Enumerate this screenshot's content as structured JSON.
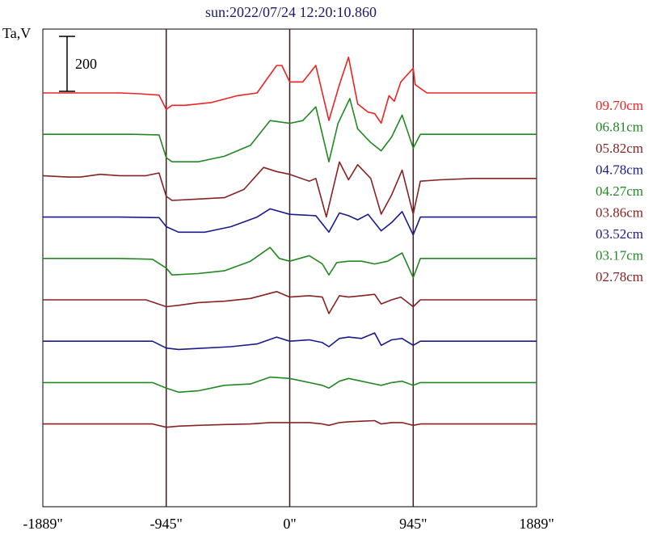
{
  "chart_data": {
    "type": "line",
    "title": "sun:2022/07/24 12:20:10.860",
    "ylabel": "Ta,V",
    "scale_bar_label": "200",
    "scale_bar_value": 200,
    "xlim": [
      -1889,
      1889
    ],
    "x_ticks": [
      {
        "value": -1889,
        "label": "-1889\""
      },
      {
        "value": -945,
        "label": "-945\""
      },
      {
        "value": 0,
        "label": "0\""
      },
      {
        "value": 945,
        "label": "945\""
      },
      {
        "value": 1889,
        "label": "1889\""
      }
    ],
    "vertical_markers": [
      -945,
      0,
      945
    ],
    "legend_position": "right",
    "series": [
      {
        "name": "09.70cm",
        "color": "#ee2222",
        "baseline": 0,
        "points": [
          [
            -1889,
            0
          ],
          [
            -1300,
            0
          ],
          [
            -1150,
            -3
          ],
          [
            -1000,
            -8
          ],
          [
            -945,
            -60
          ],
          [
            -900,
            -45
          ],
          [
            -800,
            -45
          ],
          [
            -600,
            -35
          ],
          [
            -400,
            -10
          ],
          [
            -250,
            0
          ],
          [
            -100,
            100
          ],
          [
            -60,
            100
          ],
          [
            0,
            40
          ],
          [
            100,
            40
          ],
          [
            200,
            100
          ],
          [
            300,
            -100
          ],
          [
            380,
            30
          ],
          [
            450,
            130
          ],
          [
            520,
            -40
          ],
          [
            600,
            -70
          ],
          [
            650,
            -75
          ],
          [
            700,
            -110
          ],
          [
            760,
            -10
          ],
          [
            800,
            -30
          ],
          [
            850,
            40
          ],
          [
            945,
            90
          ],
          [
            960,
            30
          ],
          [
            1050,
            0
          ],
          [
            1889,
            0
          ]
        ]
      },
      {
        "name": "06.81cm",
        "color": "#228822",
        "baseline": 0,
        "points": [
          [
            -1889,
            0
          ],
          [
            -1200,
            0
          ],
          [
            -1000,
            -2
          ],
          [
            -945,
            -85
          ],
          [
            -900,
            -100
          ],
          [
            -700,
            -100
          ],
          [
            -500,
            -80
          ],
          [
            -300,
            -40
          ],
          [
            -150,
            50
          ],
          [
            0,
            40
          ],
          [
            100,
            50
          ],
          [
            200,
            100
          ],
          [
            300,
            -100
          ],
          [
            370,
            40
          ],
          [
            460,
            130
          ],
          [
            520,
            20
          ],
          [
            620,
            -30
          ],
          [
            700,
            -60
          ],
          [
            780,
            -10
          ],
          [
            860,
            70
          ],
          [
            945,
            -50
          ],
          [
            1000,
            0
          ],
          [
            1889,
            0
          ]
        ]
      },
      {
        "name": "05.82cm",
        "color": "#882222",
        "baseline": 0,
        "points": [
          [
            -1889,
            0
          ],
          [
            -1700,
            -5
          ],
          [
            -1600,
            -5
          ],
          [
            -1450,
            5
          ],
          [
            -1300,
            0
          ],
          [
            -1100,
            0
          ],
          [
            -1000,
            10
          ],
          [
            -945,
            -75
          ],
          [
            -900,
            -90
          ],
          [
            -700,
            -85
          ],
          [
            -500,
            -80
          ],
          [
            -350,
            -50
          ],
          [
            -200,
            30
          ],
          [
            -100,
            15
          ],
          [
            0,
            5
          ],
          [
            150,
            -20
          ],
          [
            200,
            -10
          ],
          [
            280,
            -150
          ],
          [
            380,
            50
          ],
          [
            450,
            -15
          ],
          [
            520,
            40
          ],
          [
            620,
            -10
          ],
          [
            700,
            -140
          ],
          [
            780,
            -70
          ],
          [
            860,
            20
          ],
          [
            945,
            -140
          ],
          [
            1000,
            -20
          ],
          [
            1150,
            -15
          ],
          [
            1400,
            -10
          ],
          [
            1700,
            -10
          ],
          [
            1889,
            -10
          ]
        ]
      },
      {
        "name": "04.78cm",
        "color": "#1a1a8c",
        "baseline": 0,
        "points": [
          [
            -1889,
            0
          ],
          [
            -1300,
            0
          ],
          [
            -1000,
            -2
          ],
          [
            -945,
            -35
          ],
          [
            -850,
            -55
          ],
          [
            -650,
            -55
          ],
          [
            -450,
            -35
          ],
          [
            -250,
            0
          ],
          [
            -150,
            30
          ],
          [
            0,
            10
          ],
          [
            200,
            5
          ],
          [
            300,
            -55
          ],
          [
            380,
            15
          ],
          [
            450,
            5
          ],
          [
            520,
            -10
          ],
          [
            600,
            10
          ],
          [
            700,
            -50
          ],
          [
            780,
            -20
          ],
          [
            860,
            20
          ],
          [
            945,
            -65
          ],
          [
            1000,
            0
          ],
          [
            1889,
            0
          ]
        ]
      },
      {
        "name": "04.27cm",
        "color": "#228822",
        "baseline": 0,
        "points": [
          [
            -1889,
            0
          ],
          [
            -1300,
            0
          ],
          [
            -1050,
            -3
          ],
          [
            -945,
            -35
          ],
          [
            -900,
            -60
          ],
          [
            -700,
            -55
          ],
          [
            -500,
            -45
          ],
          [
            -300,
            -10
          ],
          [
            -150,
            40
          ],
          [
            -80,
            0
          ],
          [
            0,
            -10
          ],
          [
            150,
            10
          ],
          [
            250,
            -20
          ],
          [
            300,
            -60
          ],
          [
            360,
            -15
          ],
          [
            450,
            -10
          ],
          [
            550,
            -10
          ],
          [
            650,
            -20
          ],
          [
            750,
            -10
          ],
          [
            860,
            20
          ],
          [
            945,
            -70
          ],
          [
            1000,
            0
          ],
          [
            1889,
            0
          ]
        ]
      },
      {
        "name": "03.86cm",
        "color": "#882222",
        "baseline": 0,
        "points": [
          [
            -1889,
            0
          ],
          [
            -1300,
            0
          ],
          [
            -1100,
            0
          ],
          [
            -945,
            -25
          ],
          [
            -850,
            -20
          ],
          [
            -700,
            -10
          ],
          [
            -500,
            -5
          ],
          [
            -300,
            5
          ],
          [
            -100,
            30
          ],
          [
            0,
            10
          ],
          [
            150,
            15
          ],
          [
            250,
            10
          ],
          [
            300,
            -50
          ],
          [
            380,
            15
          ],
          [
            450,
            10
          ],
          [
            550,
            15
          ],
          [
            650,
            20
          ],
          [
            700,
            -15
          ],
          [
            780,
            0
          ],
          [
            850,
            10
          ],
          [
            945,
            -25
          ],
          [
            1000,
            0
          ],
          [
            1889,
            0
          ]
        ]
      },
      {
        "name": "03.52cm",
        "color": "#1a1a8c",
        "baseline": 0,
        "points": [
          [
            -1889,
            0
          ],
          [
            -1300,
            0
          ],
          [
            -1050,
            0
          ],
          [
            -945,
            -25
          ],
          [
            -850,
            -30
          ],
          [
            -650,
            -25
          ],
          [
            -450,
            -20
          ],
          [
            -250,
            -10
          ],
          [
            -100,
            15
          ],
          [
            0,
            0
          ],
          [
            150,
            5
          ],
          [
            250,
            -5
          ],
          [
            300,
            -20
          ],
          [
            380,
            10
          ],
          [
            450,
            15
          ],
          [
            550,
            10
          ],
          [
            650,
            30
          ],
          [
            700,
            -15
          ],
          [
            780,
            5
          ],
          [
            860,
            10
          ],
          [
            945,
            -15
          ],
          [
            1000,
            0
          ],
          [
            1889,
            0
          ]
        ]
      },
      {
        "name": "03.17cm",
        "color": "#228822",
        "baseline": 0,
        "points": [
          [
            -1889,
            0
          ],
          [
            -1300,
            0
          ],
          [
            -1050,
            0
          ],
          [
            -945,
            -20
          ],
          [
            -850,
            -35
          ],
          [
            -700,
            -30
          ],
          [
            -500,
            -10
          ],
          [
            -300,
            -5
          ],
          [
            -150,
            20
          ],
          [
            0,
            15
          ],
          [
            150,
            0
          ],
          [
            250,
            -10
          ],
          [
            300,
            -20
          ],
          [
            380,
            5
          ],
          [
            450,
            15
          ],
          [
            550,
            5
          ],
          [
            650,
            -5
          ],
          [
            700,
            -10
          ],
          [
            780,
            0
          ],
          [
            860,
            5
          ],
          [
            945,
            -10
          ],
          [
            1000,
            0
          ],
          [
            1889,
            0
          ]
        ]
      },
      {
        "name": "02.78cm",
        "color": "#882222",
        "baseline": 0,
        "points": [
          [
            -1889,
            0
          ],
          [
            -1300,
            0
          ],
          [
            -1050,
            0
          ],
          [
            -945,
            -12
          ],
          [
            -850,
            -8
          ],
          [
            -700,
            -5
          ],
          [
            -500,
            -2
          ],
          [
            -300,
            0
          ],
          [
            -150,
            5
          ],
          [
            0,
            5
          ],
          [
            150,
            5
          ],
          [
            250,
            0
          ],
          [
            300,
            -5
          ],
          [
            380,
            5
          ],
          [
            450,
            8
          ],
          [
            550,
            10
          ],
          [
            650,
            12
          ],
          [
            700,
            0
          ],
          [
            780,
            5
          ],
          [
            860,
            5
          ],
          [
            945,
            -5
          ],
          [
            1000,
            0
          ],
          [
            1889,
            0
          ]
        ]
      }
    ]
  }
}
